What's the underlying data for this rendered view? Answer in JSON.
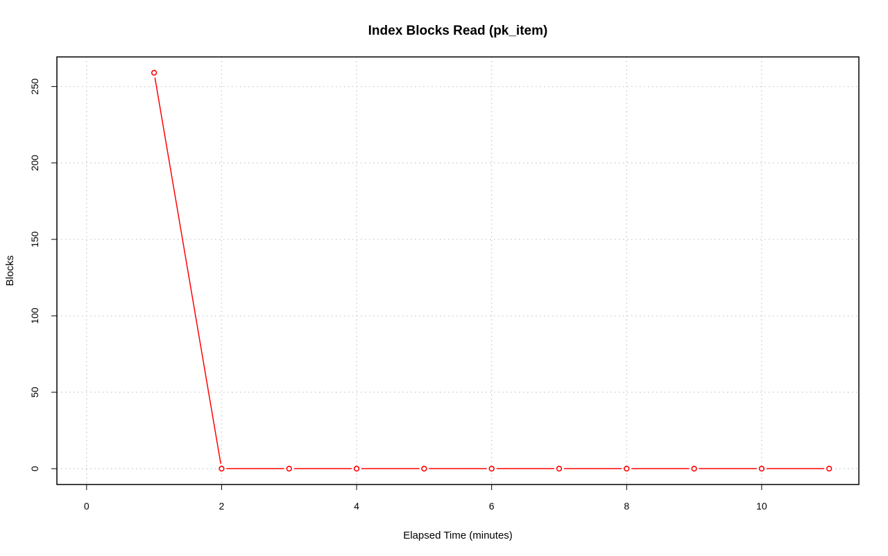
{
  "chart_data": {
    "type": "line",
    "title": "Index Blocks Read (pk_item)",
    "xlabel": "Elapsed Time (minutes)",
    "ylabel": "Blocks",
    "xlim": [
      -0.44,
      11.44
    ],
    "ylim": [
      -10.36,
      269.36
    ],
    "xticks": [
      0,
      2,
      4,
      6,
      8,
      10
    ],
    "yticks": [
      0,
      50,
      100,
      150,
      200,
      250
    ],
    "grid": true,
    "legend": "none",
    "series": [
      {
        "color": "#ff0000",
        "marker": "open-circle",
        "x": [
          1,
          2,
          3,
          4,
          5,
          6,
          7,
          8,
          9,
          10,
          11
        ],
        "y": [
          259,
          0,
          0,
          0,
          0,
          0,
          0,
          0,
          0,
          0,
          0
        ]
      }
    ]
  }
}
